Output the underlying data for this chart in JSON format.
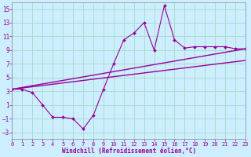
{
  "title": "",
  "xlabel": "Windchill (Refroidissement éolien,°C)",
  "background_color": "#cceeff",
  "grid_color": "#aaddcc",
  "line_color": "#990099",
  "x_min": 0,
  "x_max": 23,
  "y_min": -4,
  "y_max": 16,
  "yticks": [
    -3,
    -1,
    1,
    3,
    5,
    7,
    9,
    11,
    13,
    15
  ],
  "xticks": [
    0,
    1,
    2,
    3,
    4,
    5,
    6,
    7,
    8,
    9,
    10,
    11,
    12,
    13,
    14,
    15,
    16,
    17,
    18,
    19,
    20,
    21,
    22,
    23
  ],
  "series1_x": [
    0,
    1,
    2,
    3,
    4,
    5,
    6,
    7,
    8,
    9,
    10,
    11,
    12,
    13,
    14,
    15,
    16,
    17,
    18,
    19,
    20,
    21,
    22,
    23
  ],
  "series1_y": [
    3.3,
    3.3,
    2.8,
    1.0,
    -0.8,
    -0.8,
    -1.0,
    -2.5,
    -0.5,
    3.3,
    7.0,
    10.5,
    11.5,
    13.0,
    9.0,
    15.5,
    10.5,
    9.3,
    9.5,
    9.5,
    9.5,
    9.5,
    9.2,
    9.2
  ],
  "series2_x": [
    0,
    23
  ],
  "series2_y": [
    3.3,
    9.2
  ],
  "series3_x": [
    0,
    23
  ],
  "series3_y": [
    3.3,
    7.5
  ]
}
